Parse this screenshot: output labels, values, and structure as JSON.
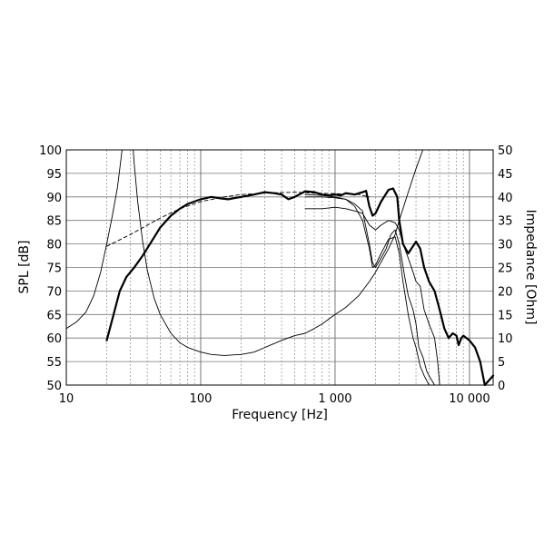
{
  "chart_data": {
    "type": "line",
    "title": "",
    "xlabel": "Frequency [Hz]",
    "ylabel_left": "SPL [dB]",
    "ylabel_right": "Impedance [Ohm]",
    "x_scale": "log",
    "xlim": [
      10,
      15000
    ],
    "ylim_left": [
      50,
      100
    ],
    "ylim_right": [
      0,
      50
    ],
    "grid": true,
    "x_tick_labels": [
      {
        "value": 10,
        "label": "10"
      },
      {
        "value": 100,
        "label": "100"
      },
      {
        "value": 1000,
        "label": "1 000"
      },
      {
        "value": 10000,
        "label": "10 000"
      }
    ],
    "y_left_tick_labels": [
      "50",
      "55",
      "60",
      "65",
      "70",
      "75",
      "80",
      "85",
      "90",
      "95",
      "100"
    ],
    "y_right_tick_labels": [
      "0",
      "5",
      "10",
      "15",
      "20",
      "25",
      "30",
      "35",
      "40",
      "45",
      "50"
    ],
    "series": [
      {
        "style": "thick",
        "axis": "left",
        "points": [
          [
            20,
            59.5
          ],
          [
            22,
            64
          ],
          [
            25,
            70
          ],
          [
            28,
            73
          ],
          [
            32,
            75
          ],
          [
            37,
            77.5
          ],
          [
            42,
            80
          ],
          [
            50,
            83.5
          ],
          [
            60,
            86
          ],
          [
            70,
            87.5
          ],
          [
            80,
            88.5
          ],
          [
            100,
            89.5
          ],
          [
            120,
            90
          ],
          [
            140,
            89.7
          ],
          [
            160,
            89.5
          ],
          [
            200,
            90
          ],
          [
            250,
            90.5
          ],
          [
            300,
            91
          ],
          [
            350,
            90.8
          ],
          [
            400,
            90.5
          ],
          [
            450,
            89.5
          ],
          [
            500,
            90
          ],
          [
            600,
            91.2
          ],
          [
            700,
            91
          ],
          [
            800,
            90.5
          ],
          [
            900,
            90.3
          ],
          [
            1000,
            90.5
          ],
          [
            1100,
            90.3
          ],
          [
            1200,
            90.8
          ],
          [
            1400,
            90.5
          ],
          [
            1600,
            91
          ],
          [
            1700,
            91.3
          ],
          [
            1800,
            88
          ],
          [
            1900,
            86
          ],
          [
            2000,
            86.5
          ],
          [
            2200,
            89
          ],
          [
            2500,
            91.5
          ],
          [
            2700,
            91.8
          ],
          [
            2900,
            90
          ],
          [
            3000,
            85
          ],
          [
            3200,
            80
          ],
          [
            3500,
            78
          ],
          [
            3700,
            79
          ],
          [
            4000,
            80.5
          ],
          [
            4300,
            79
          ],
          [
            4600,
            75
          ],
          [
            5000,
            72
          ],
          [
            5500,
            70
          ],
          [
            6000,
            66
          ],
          [
            6500,
            62
          ],
          [
            7000,
            60
          ],
          [
            7500,
            61
          ],
          [
            8000,
            60.5
          ],
          [
            8300,
            58.5
          ],
          [
            8700,
            60
          ],
          [
            9000,
            60.5
          ],
          [
            9500,
            60
          ],
          [
            10000,
            59.5
          ],
          [
            11000,
            58
          ],
          [
            12000,
            55
          ],
          [
            13000,
            50
          ],
          [
            15000,
            52
          ]
        ]
      },
      {
        "style": "dashed",
        "axis": "left",
        "points": [
          [
            20,
            79.5
          ],
          [
            30,
            82
          ],
          [
            50,
            85.5
          ],
          [
            70,
            87.5
          ],
          [
            100,
            89
          ],
          [
            150,
            90
          ],
          [
            200,
            90.5
          ],
          [
            300,
            90.8
          ],
          [
            500,
            91
          ],
          [
            700,
            90.8
          ],
          [
            1000,
            90.7
          ],
          [
            1500,
            90.5
          ],
          [
            1800,
            90
          ]
        ]
      },
      {
        "style": "thin",
        "axis": "left",
        "points": [
          [
            600,
            87.5
          ],
          [
            800,
            87.5
          ],
          [
            1000,
            87.8
          ],
          [
            1200,
            87.5
          ],
          [
            1400,
            87
          ],
          [
            1600,
            86.5
          ],
          [
            1800,
            84
          ],
          [
            2000,
            83
          ],
          [
            2200,
            84
          ],
          [
            2500,
            85
          ],
          [
            2800,
            84.5
          ],
          [
            3000,
            83
          ],
          [
            3200,
            80
          ],
          [
            3500,
            77
          ],
          [
            3800,
            74
          ],
          [
            4000,
            72
          ],
          [
            4300,
            71
          ],
          [
            4600,
            66
          ],
          [
            5000,
            63
          ],
          [
            5500,
            60
          ],
          [
            5800,
            55
          ],
          [
            6000,
            50
          ]
        ]
      },
      {
        "style": "thin",
        "axis": "left",
        "points": [
          [
            600,
            90
          ],
          [
            800,
            90
          ],
          [
            1000,
            89.8
          ],
          [
            1200,
            89.5
          ],
          [
            1400,
            88.5
          ],
          [
            1600,
            87
          ],
          [
            1800,
            80
          ],
          [
            1900,
            76
          ],
          [
            2000,
            75
          ],
          [
            2200,
            77
          ],
          [
            2400,
            79
          ],
          [
            2600,
            82
          ],
          [
            2800,
            83
          ],
          [
            3000,
            80
          ],
          [
            3300,
            73
          ],
          [
            3500,
            69
          ],
          [
            3800,
            66
          ],
          [
            4000,
            63
          ],
          [
            4200,
            58
          ],
          [
            4500,
            56
          ],
          [
            4800,
            53
          ],
          [
            5000,
            52
          ],
          [
            5500,
            50
          ]
        ]
      },
      {
        "style": "thin",
        "axis": "left",
        "points": [
          [
            600,
            90.5
          ],
          [
            800,
            90.3
          ],
          [
            1000,
            90
          ],
          [
            1200,
            89.5
          ],
          [
            1400,
            88
          ],
          [
            1600,
            85
          ],
          [
            1800,
            79
          ],
          [
            1900,
            75
          ],
          [
            2000,
            75.5
          ],
          [
            2200,
            78
          ],
          [
            2500,
            81
          ],
          [
            2800,
            81.5
          ],
          [
            3000,
            78
          ],
          [
            3200,
            72
          ],
          [
            3500,
            65
          ],
          [
            3800,
            60
          ],
          [
            4000,
            58
          ],
          [
            4300,
            54
          ],
          [
            4600,
            52
          ],
          [
            5000,
            50
          ]
        ]
      },
      {
        "style": "thin",
        "axis": "right",
        "points": [
          [
            10,
            12
          ],
          [
            12,
            13.5
          ],
          [
            14,
            15.5
          ],
          [
            16,
            19
          ],
          [
            18,
            24
          ],
          [
            20,
            30
          ],
          [
            22,
            36
          ],
          [
            24,
            42
          ],
          [
            25,
            46
          ],
          [
            26,
            50
          ],
          [
            31.5,
            50
          ],
          [
            32,
            47
          ],
          [
            34,
            39
          ],
          [
            37,
            30.5
          ],
          [
            40,
            24.5
          ],
          [
            45,
            18.5
          ],
          [
            50,
            15
          ],
          [
            60,
            11
          ],
          [
            70,
            9
          ],
          [
            80,
            8
          ],
          [
            100,
            7
          ],
          [
            120,
            6.5
          ],
          [
            150,
            6.3
          ],
          [
            200,
            6.5
          ],
          [
            250,
            7
          ],
          [
            300,
            8
          ],
          [
            400,
            9.5
          ],
          [
            500,
            10.5
          ],
          [
            600,
            11
          ],
          [
            700,
            12
          ],
          [
            800,
            13
          ],
          [
            1000,
            15
          ],
          [
            1200,
            16.5
          ],
          [
            1500,
            19
          ],
          [
            1800,
            22
          ],
          [
            2000,
            24
          ],
          [
            2500,
            29
          ],
          [
            2800,
            32
          ],
          [
            3000,
            35
          ],
          [
            3500,
            41
          ],
          [
            4000,
            46
          ],
          [
            4500,
            50
          ]
        ]
      }
    ]
  }
}
